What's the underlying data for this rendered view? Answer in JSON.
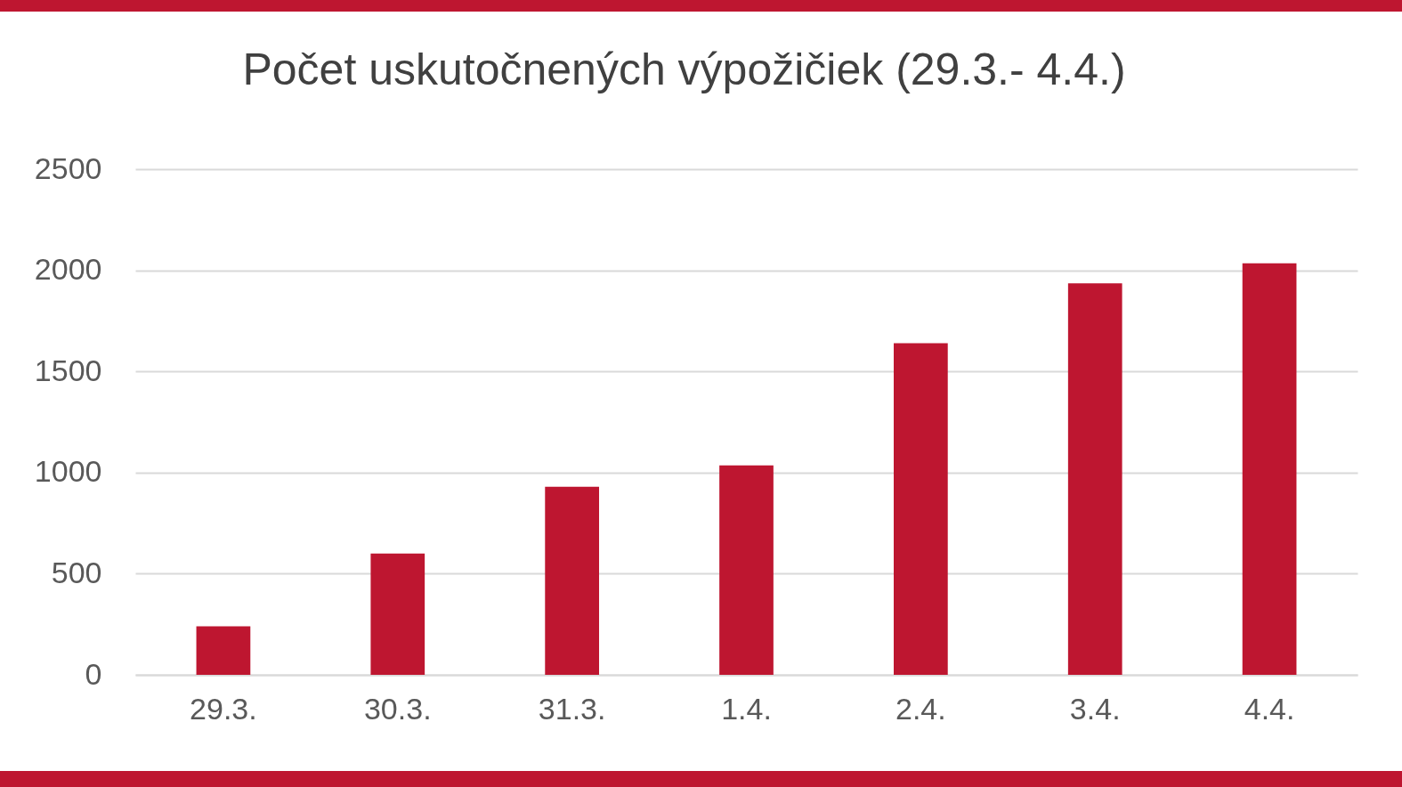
{
  "chart_data": {
    "type": "bar",
    "title": "Počet uskutočnených výpožičiek (29.3.- 4.4.)",
    "categories": [
      "29.3.",
      "30.3.",
      "31.3.",
      "1.4.",
      "2.4.",
      "3.4.",
      "4.4."
    ],
    "values": [
      240,
      600,
      930,
      1035,
      1640,
      1935,
      2035
    ],
    "color": "#be1630",
    "ylim": [
      0,
      2500
    ],
    "yticks": [
      0,
      500,
      1000,
      1500,
      2000,
      2500
    ],
    "grid": "y"
  }
}
